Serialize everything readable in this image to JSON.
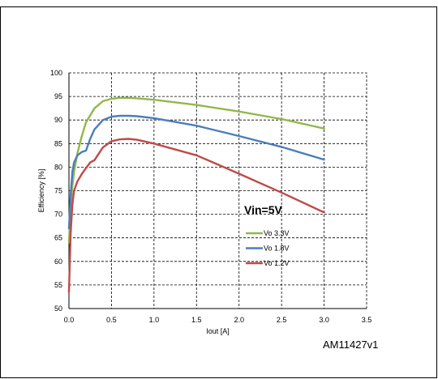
{
  "chart_data": {
    "type": "line",
    "title": "",
    "xlabel": "Iout [A]",
    "ylabel": "Efficiency [%]",
    "xlim": [
      0.0,
      3.5
    ],
    "ylim": [
      50,
      100
    ],
    "xticks": [
      "0.0",
      "0.5",
      "1.0",
      "1.5",
      "2.0",
      "2.5",
      "3.0",
      "3.5"
    ],
    "yticks": [
      "50",
      "55",
      "60",
      "65",
      "70",
      "75",
      "80",
      "85",
      "90",
      "95",
      "100"
    ],
    "grid": true,
    "grid_style": "dashed",
    "annotation": "Vin=5V",
    "figure_id": "AM11427v1",
    "legend_position": "center-right",
    "series": [
      {
        "name": "Vo 3.3V",
        "color": "#92b84b",
        "x": [
          0.0,
          0.02,
          0.04,
          0.06,
          0.1,
          0.15,
          0.2,
          0.3,
          0.4,
          0.5,
          0.6,
          0.7,
          0.8,
          1.0,
          1.5,
          2.0,
          2.5,
          3.0
        ],
        "y": [
          64,
          72,
          76,
          79,
          83,
          86.5,
          89.5,
          92.5,
          94,
          94.5,
          94.7,
          94.7,
          94.6,
          94.3,
          93.2,
          91.8,
          90.2,
          88.2
        ]
      },
      {
        "name": "Vo 1.8V",
        "color": "#4a7ebb",
        "x": [
          0.0,
          0.02,
          0.04,
          0.06,
          0.1,
          0.15,
          0.2,
          0.25,
          0.3,
          0.4,
          0.5,
          0.6,
          0.7,
          0.8,
          1.0,
          1.5,
          2.0,
          2.5,
          3.0
        ],
        "y": [
          67,
          74,
          79,
          81,
          82.5,
          83.2,
          83.5,
          86,
          88,
          90,
          90.7,
          90.9,
          90.9,
          90.8,
          90.4,
          88.8,
          86.6,
          84.3,
          81.6
        ]
      },
      {
        "name": "Vo 1.2V",
        "color": "#be4b48",
        "x": [
          0.0,
          0.02,
          0.04,
          0.06,
          0.1,
          0.15,
          0.2,
          0.25,
          0.3,
          0.4,
          0.5,
          0.6,
          0.7,
          0.8,
          1.0,
          1.5,
          2.0,
          2.5,
          3.0
        ],
        "y": [
          53.5,
          66,
          72,
          75,
          77,
          78.5,
          79.8,
          81,
          81.5,
          84.2,
          85.5,
          85.9,
          86,
          85.8,
          85,
          82.5,
          78.6,
          74.6,
          70.4
        ]
      }
    ]
  }
}
